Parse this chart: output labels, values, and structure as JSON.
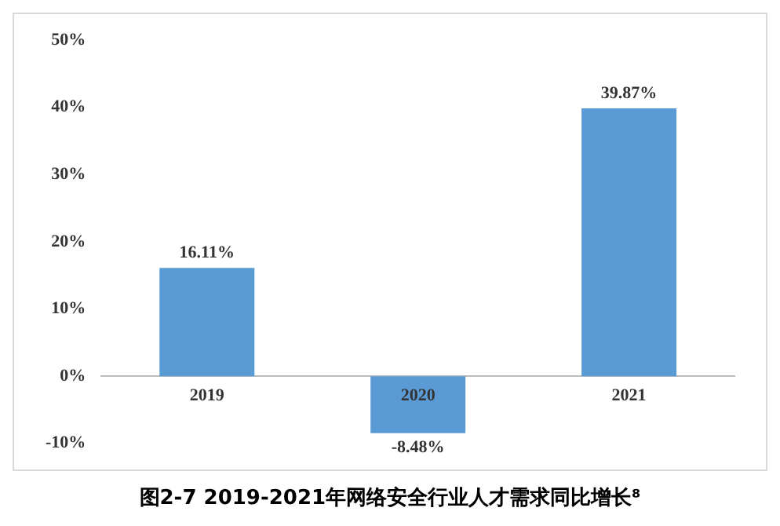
{
  "chart_data": {
    "type": "bar",
    "title": "图2-7 2019-2021年网络安全行业人才需求同比增长⁸",
    "categories": [
      "2019",
      "2020",
      "2021"
    ],
    "values": [
      16.11,
      -8.48,
      39.87
    ],
    "value_labels": [
      "16.11%",
      "-8.48%",
      "39.87%"
    ],
    "color": "#5b9bd5",
    "ylim": [
      -10,
      50
    ],
    "yticks": [
      {
        "value": -10,
        "label": "-10%"
      },
      {
        "value": 0,
        "label": "0%"
      },
      {
        "value": 10,
        "label": "10%"
      },
      {
        "value": 20,
        "label": "20%"
      },
      {
        "value": 30,
        "label": "30%"
      },
      {
        "value": 40,
        "label": "40%"
      },
      {
        "value": 50,
        "label": "50%"
      }
    ],
    "grid": false,
    "legend": false
  }
}
